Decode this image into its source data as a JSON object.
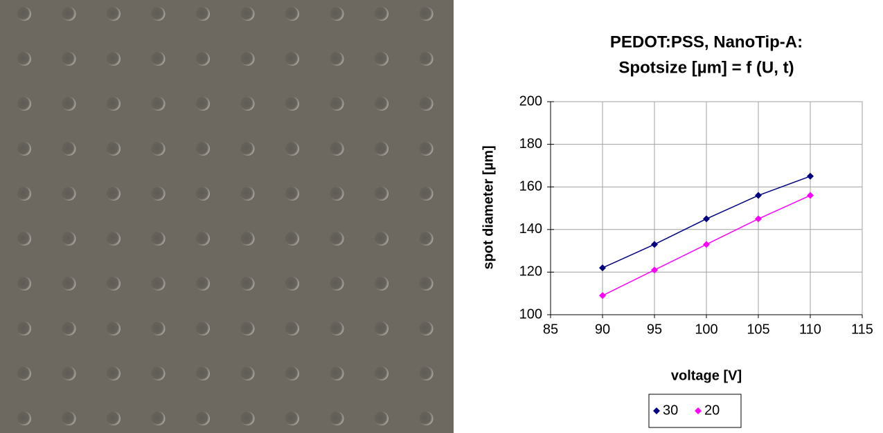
{
  "chart_data": {
    "type": "line",
    "title": [
      "PEDOT:PSS, NanoTip-A:",
      "Spotsize [µm] = f (U, t)"
    ],
    "xlabel": "voltage [V]",
    "ylabel": "spot diameter [µm]",
    "x": [
      90,
      95,
      100,
      105,
      110
    ],
    "series": [
      {
        "name": "30",
        "color": "#000080",
        "values": [
          122,
          133,
          145,
          156,
          165
        ]
      },
      {
        "name": "20",
        "color": "#ff00ff",
        "values": [
          109,
          121,
          133,
          145,
          156
        ]
      }
    ],
    "xlim": [
      85,
      115
    ],
    "xticks": [
      85,
      90,
      95,
      100,
      105,
      110,
      115
    ],
    "ylim": [
      100,
      200
    ],
    "yticks": [
      100,
      120,
      140,
      160,
      180,
      200
    ],
    "grid": true,
    "legend": "bottom"
  }
}
